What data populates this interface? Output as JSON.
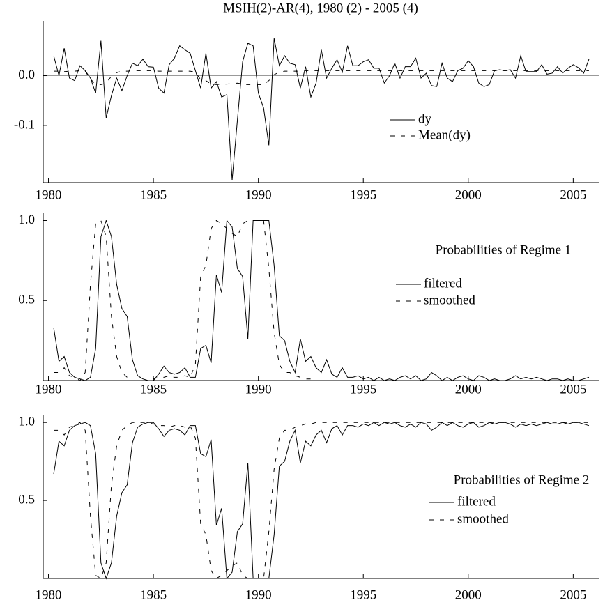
{
  "chart_data": [
    {
      "type": "line",
      "title": "MSIH(2)-AR(4), 1980 (2) - 2005 (4)",
      "x": [
        1980.25,
        1980.5,
        1980.75,
        1981,
        1981.25,
        1981.5,
        1981.75,
        1982,
        1982.25,
        1982.5,
        1982.75,
        1983,
        1983.25,
        1983.5,
        1983.75,
        1984,
        1984.25,
        1984.5,
        1984.75,
        1985,
        1985.25,
        1985.5,
        1985.75,
        1986,
        1986.25,
        1986.5,
        1986.75,
        1987,
        1987.25,
        1987.5,
        1987.75,
        1988,
        1988.25,
        1988.5,
        1988.75,
        1989,
        1989.25,
        1989.5,
        1989.75,
        1990,
        1990.25,
        1990.5,
        1990.75,
        1991,
        1991.25,
        1991.5,
        1991.75,
        1992,
        1992.25,
        1992.5,
        1992.75,
        1993,
        1993.25,
        1993.5,
        1993.75,
        1994,
        1994.25,
        1994.5,
        1994.75,
        1995,
        1995.25,
        1995.5,
        1995.75,
        1996,
        1996.25,
        1996.5,
        1996.75,
        1997,
        1997.25,
        1997.5,
        1997.75,
        1998,
        1998.25,
        1998.5,
        1998.75,
        1999,
        1999.25,
        1999.5,
        1999.75,
        2000,
        2000.25,
        2000.5,
        2000.75,
        2001,
        2001.25,
        2001.5,
        2001.75,
        2002,
        2002.25,
        2002.5,
        2002.75,
        2003,
        2003.25,
        2003.5,
        2003.75,
        2004,
        2004.25,
        2004.5,
        2004.75,
        2005,
        2005.25,
        2005.5,
        2005.75
      ],
      "series": [
        {
          "name": "dy",
          "color": "#000000",
          "style": "solid",
          "values": [
            0.04,
            0.0,
            0.055,
            -0.005,
            -0.01,
            0.02,
            0.01,
            -0.005,
            -0.035,
            0.07,
            -0.085,
            -0.04,
            -0.005,
            -0.03,
            0.0,
            0.025,
            0.02,
            0.033,
            0.018,
            0.017,
            -0.025,
            -0.035,
            0.022,
            0.035,
            0.06,
            0.052,
            0.045,
            0.01,
            -0.025,
            0.045,
            -0.025,
            -0.012,
            -0.043,
            -0.038,
            -0.21,
            -0.09,
            0.028,
            0.065,
            0.06,
            -0.035,
            -0.065,
            -0.14,
            0.075,
            0.02,
            0.04,
            0.025,
            0.022,
            -0.025,
            0.018,
            -0.043,
            -0.015,
            0.052,
            -0.005,
            0.015,
            0.032,
            0.007,
            0.06,
            0.02,
            0.02,
            0.028,
            0.032,
            0.015,
            0.015,
            -0.015,
            0.0,
            0.025,
            -0.005,
            0.018,
            0.018,
            0.035,
            -0.005,
            0.005,
            -0.02,
            -0.022,
            0.025,
            -0.005,
            -0.012,
            0.01,
            0.015,
            0.03,
            0.018,
            -0.015,
            -0.022,
            -0.018,
            0.01,
            0.012,
            0.01,
            0.012,
            -0.005,
            0.04,
            0.008,
            0.008,
            0.008,
            0.022,
            0.003,
            0.005,
            0.018,
            0.005,
            0.015,
            0.022,
            0.016,
            0.005,
            0.033
          ]
        },
        {
          "name": "Mean(dy)",
          "color": "#000000",
          "style": "dashed",
          "values": [
            0.009,
            0.009,
            0.008,
            0.009,
            0.009,
            0.01,
            0.009,
            -0.007,
            -0.017,
            -0.018,
            -0.015,
            -0.001,
            0.006,
            0.009,
            0.009,
            0.01,
            0.01,
            0.01,
            0.01,
            0.01,
            0.009,
            0.009,
            0.009,
            0.009,
            0.009,
            0.009,
            0.009,
            0.007,
            -0.008,
            -0.01,
            -0.017,
            -0.018,
            -0.017,
            -0.017,
            -0.016,
            -0.015,
            -0.017,
            -0.018,
            -0.018,
            -0.018,
            -0.018,
            -0.01,
            0.002,
            0.007,
            0.009,
            0.009,
            0.009,
            0.009,
            0.01,
            0.01,
            0.01,
            0.01,
            0.01,
            0.01,
            0.01,
            0.01,
            0.01,
            0.01,
            0.01,
            0.01,
            0.01,
            0.01,
            0.01,
            0.01,
            0.01,
            0.01,
            0.01,
            0.01,
            0.01,
            0.01,
            0.01,
            0.01,
            0.01,
            0.01,
            0.01,
            0.01,
            0.01,
            0.01,
            0.01,
            0.01,
            0.01,
            0.01,
            0.01,
            0.01,
            0.01,
            0.01,
            0.01,
            0.01,
            0.01,
            0.01,
            0.01,
            0.01,
            0.01,
            0.01,
            0.01,
            0.01,
            0.01,
            0.01,
            0.01,
            0.01,
            0.01,
            0.01,
            0.01
          ]
        }
      ],
      "xlim": [
        1979.75,
        2006.25
      ],
      "xticks": [
        1980,
        1985,
        1990,
        1995,
        2000,
        2005
      ],
      "ylim": [
        -0.215,
        0.11
      ],
      "yticks": [
        {
          "value": -0.1,
          "label": "-0.1"
        },
        {
          "value": 0,
          "label": "0.0"
        }
      ],
      "reference_line": 0
    },
    {
      "type": "line",
      "annotation": "Probabilities of Regime 1",
      "x": [
        1980.25,
        1980.5,
        1980.75,
        1981,
        1981.25,
        1981.5,
        1981.75,
        1982,
        1982.25,
        1982.5,
        1982.75,
        1983,
        1983.25,
        1983.5,
        1983.75,
        1984,
        1984.25,
        1984.5,
        1984.75,
        1985,
        1985.25,
        1985.5,
        1985.75,
        1986,
        1986.25,
        1986.5,
        1986.75,
        1987,
        1987.25,
        1987.5,
        1987.75,
        1988,
        1988.25,
        1988.5,
        1988.75,
        1989,
        1989.25,
        1989.5,
        1989.75,
        1990,
        1990.25,
        1990.5,
        1990.75,
        1991,
        1991.25,
        1991.5,
        1991.75,
        1992,
        1992.25,
        1992.5,
        1992.75,
        1993,
        1993.25,
        1993.5,
        1993.75,
        1994,
        1994.25,
        1994.5,
        1994.75,
        1995,
        1995.25,
        1995.5,
        1995.75,
        1996,
        1996.25,
        1996.5,
        1996.75,
        1997,
        1997.25,
        1997.5,
        1997.75,
        1998,
        1998.25,
        1998.5,
        1998.75,
        1999,
        1999.25,
        1999.5,
        1999.75,
        2000,
        2000.25,
        2000.5,
        2000.75,
        2001,
        2001.25,
        2001.5,
        2001.75,
        2002,
        2002.25,
        2002.5,
        2002.75,
        2003,
        2003.25,
        2003.5,
        2003.75,
        2004,
        2004.25,
        2004.5,
        2004.75,
        2005,
        2005.25,
        2005.5,
        2005.75
      ],
      "series": [
        {
          "name": "filtered",
          "color": "#000000",
          "style": "solid",
          "values": [
            0.33,
            0.12,
            0.15,
            0.05,
            0.02,
            0.01,
            0.0,
            0.02,
            0.2,
            0.9,
            1.0,
            0.9,
            0.6,
            0.45,
            0.4,
            0.13,
            0.03,
            0.01,
            0.0,
            0.0,
            0.04,
            0.09,
            0.05,
            0.04,
            0.05,
            0.08,
            0.02,
            0.02,
            0.2,
            0.22,
            0.11,
            0.66,
            0.55,
            1.0,
            0.96,
            0.7,
            0.65,
            0.26,
            1.0,
            1.0,
            1.0,
            1.0,
            0.72,
            0.28,
            0.25,
            0.12,
            0.05,
            0.26,
            0.12,
            0.15,
            0.08,
            0.05,
            0.13,
            0.04,
            0.02,
            0.08,
            0.02,
            0.02,
            0.03,
            0.01,
            0.02,
            0.0,
            0.02,
            0.0,
            0.01,
            0.0,
            0.02,
            0.03,
            0.01,
            0.03,
            0.0,
            0.01,
            0.05,
            0.03,
            0.0,
            0.02,
            0.0,
            0.02,
            0.03,
            0.01,
            0.0,
            0.03,
            0.02,
            0.0,
            0.01,
            0.0,
            0.0,
            0.01,
            0.03,
            0.01,
            0.02,
            0.01,
            0.02,
            0.01,
            0.0,
            0.01,
            0.01,
            0.0,
            0.01,
            0.0,
            0.0,
            0.01,
            0.02
          ]
        },
        {
          "name": "smoothed",
          "color": "#000000",
          "style": "dashed",
          "values": [
            0.05,
            0.05,
            0.08,
            0.03,
            0.02,
            0.0,
            0.05,
            0.6,
            0.98,
            1.0,
            0.9,
            0.4,
            0.15,
            0.05,
            0.02,
            0.0,
            0.0,
            0.0,
            0.0,
            0.01,
            0.02,
            0.02,
            0.03,
            0.02,
            0.02,
            0.03,
            0.02,
            0.1,
            0.65,
            0.72,
            0.95,
            1.0,
            0.98,
            0.95,
            0.92,
            0.9,
            0.98,
            1.0,
            1.0,
            1.0,
            1.0,
            0.7,
            0.3,
            0.1,
            0.05,
            0.05,
            0.03,
            0.02,
            0.01,
            0.01,
            0.0,
            0.0,
            0.0,
            0.0,
            0.0,
            0.0,
            0.0,
            0.0,
            0.0,
            0.0,
            0.0,
            0.0,
            0.0,
            0.0,
            0.0,
            0.0,
            0.0,
            0.0,
            0.0,
            0.0,
            0.0,
            0.0,
            0.0,
            0.0,
            0.0,
            0.0,
            0.0,
            0.0,
            0.0,
            0.0,
            0.0,
            0.0,
            0.0,
            0.0,
            0.0,
            0.0,
            0.0,
            0.0,
            0.0,
            0.0,
            0.0,
            0.0,
            0.0,
            0.0,
            0.0,
            0.0,
            0.0,
            0.0,
            0.0,
            0.0,
            0.0,
            0.0,
            0.0
          ]
        }
      ],
      "xlim": [
        1979.75,
        2006.25
      ],
      "xticks": [
        1980,
        1985,
        1990,
        1995,
        2000,
        2005
      ],
      "ylim": [
        0,
        1.05
      ],
      "yticks": [
        {
          "value": 0.5,
          "label": "0.5"
        },
        {
          "value": 1,
          "label": "1.0"
        }
      ]
    },
    {
      "type": "line",
      "annotation": "Probabilities of Regime 2",
      "x": [
        1980.25,
        1980.5,
        1980.75,
        1981,
        1981.25,
        1981.5,
        1981.75,
        1982,
        1982.25,
        1982.5,
        1982.75,
        1983,
        1983.25,
        1983.5,
        1983.75,
        1984,
        1984.25,
        1984.5,
        1984.75,
        1985,
        1985.25,
        1985.5,
        1985.75,
        1986,
        1986.25,
        1986.5,
        1986.75,
        1987,
        1987.25,
        1987.5,
        1987.75,
        1988,
        1988.25,
        1988.5,
        1988.75,
        1989,
        1989.25,
        1989.5,
        1989.75,
        1990,
        1990.25,
        1990.5,
        1990.75,
        1991,
        1991.25,
        1991.5,
        1991.75,
        1992,
        1992.25,
        1992.5,
        1992.75,
        1993,
        1993.25,
        1993.5,
        1993.75,
        1994,
        1994.25,
        1994.5,
        1994.75,
        1995,
        1995.25,
        1995.5,
        1995.75,
        1996,
        1996.25,
        1996.5,
        1996.75,
        1997,
        1997.25,
        1997.5,
        1997.75,
        1998,
        1998.25,
        1998.5,
        1998.75,
        1999,
        1999.25,
        1999.5,
        1999.75,
        2000,
        2000.25,
        2000.5,
        2000.75,
        2001,
        2001.25,
        2001.5,
        2001.75,
        2002,
        2002.25,
        2002.5,
        2002.75,
        2003,
        2003.25,
        2003.5,
        2003.75,
        2004,
        2004.25,
        2004.5,
        2004.75,
        2005,
        2005.25,
        2005.5,
        2005.75
      ],
      "series": [
        {
          "name": "filtered",
          "color": "#000000",
          "style": "solid",
          "values": [
            0.67,
            0.88,
            0.85,
            0.95,
            0.98,
            0.99,
            1.0,
            0.98,
            0.8,
            0.1,
            0.0,
            0.1,
            0.4,
            0.55,
            0.6,
            0.87,
            0.97,
            0.99,
            1.0,
            1.0,
            0.96,
            0.91,
            0.95,
            0.96,
            0.95,
            0.92,
            0.98,
            0.98,
            0.8,
            0.78,
            0.89,
            0.34,
            0.45,
            0.0,
            0.04,
            0.3,
            0.35,
            0.74,
            0.0,
            0.0,
            0.0,
            0.0,
            0.28,
            0.72,
            0.75,
            0.88,
            0.95,
            0.74,
            0.88,
            0.85,
            0.92,
            0.95,
            0.87,
            0.96,
            0.98,
            0.92,
            0.98,
            0.98,
            0.97,
            0.99,
            0.98,
            1.0,
            0.98,
            1.0,
            0.99,
            1.0,
            0.98,
            0.97,
            0.99,
            0.97,
            1.0,
            0.99,
            0.95,
            0.97,
            1.0,
            0.98,
            1.0,
            0.98,
            0.97,
            0.99,
            1.0,
            0.97,
            0.98,
            1.0,
            0.99,
            1.0,
            1.0,
            0.99,
            0.97,
            0.99,
            0.98,
            0.99,
            0.98,
            0.99,
            1.0,
            0.99,
            0.99,
            1.0,
            0.99,
            1.0,
            1.0,
            0.99,
            0.98
          ]
        },
        {
          "name": "smoothed",
          "color": "#000000",
          "style": "dashed",
          "values": [
            0.95,
            0.95,
            0.92,
            0.97,
            0.98,
            1.0,
            0.95,
            0.4,
            0.02,
            0.0,
            0.1,
            0.6,
            0.85,
            0.95,
            0.98,
            1.0,
            1.0,
            1.0,
            1.0,
            0.99,
            0.98,
            0.98,
            0.97,
            0.98,
            0.98,
            0.97,
            0.98,
            0.9,
            0.35,
            0.28,
            0.05,
            0.0,
            0.02,
            0.05,
            0.08,
            0.1,
            0.02,
            0.0,
            0.0,
            0.0,
            0.0,
            0.3,
            0.7,
            0.9,
            0.95,
            0.95,
            0.97,
            0.98,
            0.99,
            0.99,
            1.0,
            1.0,
            1.0,
            1.0,
            1.0,
            1.0,
            1.0,
            1.0,
            1.0,
            1.0,
            1.0,
            1.0,
            1.0,
            1.0,
            1.0,
            1.0,
            1.0,
            1.0,
            1.0,
            1.0,
            1.0,
            1.0,
            1.0,
            1.0,
            1.0,
            1.0,
            1.0,
            1.0,
            1.0,
            1.0,
            1.0,
            1.0,
            1.0,
            1.0,
            1.0,
            1.0,
            1.0,
            1.0,
            1.0,
            1.0,
            1.0,
            1.0,
            1.0,
            1.0,
            1.0,
            1.0,
            1.0,
            1.0,
            1.0,
            1.0,
            1.0,
            1.0,
            1.0
          ]
        }
      ],
      "xlim": [
        1979.75,
        2006.25
      ],
      "xticks": [
        1980,
        1985,
        1990,
        1995,
        2000,
        2005
      ],
      "ylim": [
        0,
        1.05
      ],
      "yticks": [
        {
          "value": 0.5,
          "label": "0.5"
        },
        {
          "value": 1,
          "label": "1.0"
        }
      ]
    }
  ]
}
